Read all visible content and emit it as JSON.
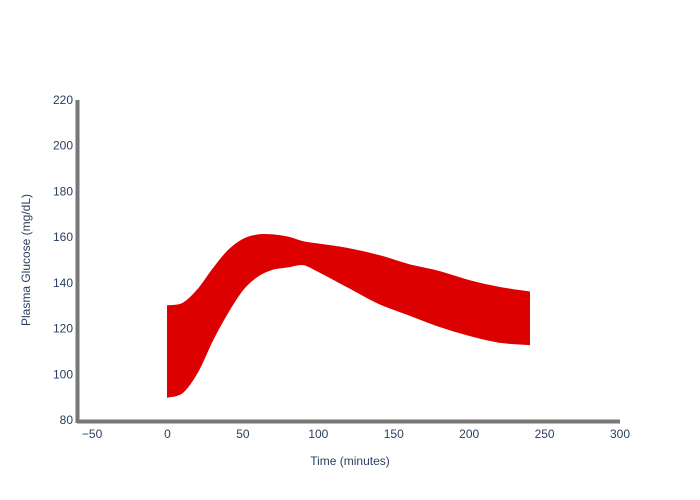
{
  "chart_data": {
    "type": "area",
    "title": "",
    "xlabel": "Time (minutes)",
    "ylabel": "Plasma Glucose (mg/dL)",
    "xlim": [
      -60,
      300
    ],
    "ylim": [
      80,
      220
    ],
    "x_ticks": [
      -50,
      0,
      50,
      100,
      150,
      200,
      250,
      300
    ],
    "x_tick_labels": [
      "−50",
      "0",
      "50",
      "100",
      "150",
      "200",
      "250",
      "300"
    ],
    "y_ticks": [
      80,
      100,
      120,
      140,
      160,
      180,
      200,
      220
    ],
    "y_tick_labels": [
      "80",
      "100",
      "120",
      "140",
      "160",
      "180",
      "200",
      "220"
    ],
    "grid": false,
    "legend": "none",
    "band": {
      "color": "#dd0000",
      "x": [
        0,
        10,
        20,
        30,
        40,
        50,
        60,
        70,
        80,
        90,
        100,
        120,
        140,
        160,
        180,
        200,
        220,
        240
      ],
      "upper": [
        130,
        131,
        137,
        146,
        154,
        159,
        161,
        161,
        160,
        158,
        157,
        155,
        152,
        148,
        145,
        141,
        138,
        136
      ],
      "lower": [
        90,
        92,
        101,
        115,
        127,
        137,
        143,
        146,
        147,
        148,
        145,
        138,
        131,
        126,
        121,
        117,
        114,
        113
      ]
    }
  }
}
